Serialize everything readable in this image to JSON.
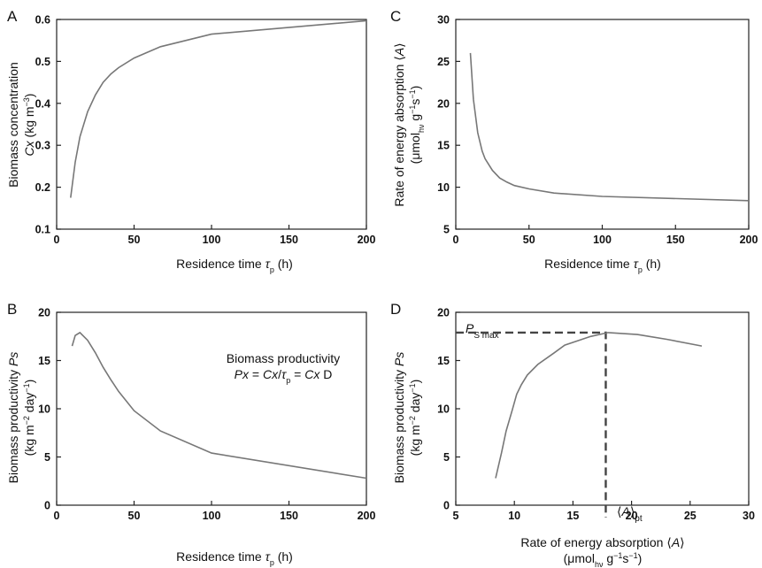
{
  "chart_data": [
    {
      "panel": "A",
      "type": "line",
      "xlim": [
        0,
        200
      ],
      "ylim": [
        0.1,
        0.6
      ],
      "xticks": [
        0,
        50,
        100,
        150,
        200
      ],
      "yticks": [
        0.1,
        0.2,
        0.3,
        0.4,
        0.5,
        0.6
      ],
      "ytick_labels": [
        "0.1",
        "0.2",
        "0.3",
        "0.4",
        "0.5",
        "0.6"
      ],
      "xlabel": "Residence time τp (h)",
      "ylabel": [
        "Biomass concentration",
        "Cx (kg m−3)"
      ],
      "series": [
        {
          "x": [
            9,
            12,
            15,
            20,
            25,
            30,
            35,
            40,
            50,
            67,
            100,
            200
          ],
          "y": [
            0.175,
            0.26,
            0.32,
            0.38,
            0.42,
            0.45,
            0.47,
            0.485,
            0.508,
            0.535,
            0.565,
            0.597
          ]
        }
      ]
    },
    {
      "panel": "C",
      "type": "line",
      "xlim": [
        0,
        200
      ],
      "ylim": [
        5,
        30
      ],
      "xticks": [
        0,
        50,
        100,
        150,
        200
      ],
      "yticks": [
        5,
        10,
        15,
        20,
        25,
        30
      ],
      "ytick_labels": [
        "5",
        "10",
        "15",
        "20",
        "25",
        "30"
      ],
      "xlabel": "Residence time τp (h)",
      "ylabel": [
        "Rate of energy absorption ⟨A⟩",
        "(μmolhν g−1 s−1)"
      ],
      "series": [
        {
          "x": [
            10,
            12,
            15,
            18,
            20,
            25,
            30,
            35,
            40,
            50,
            67,
            100,
            200
          ],
          "y": [
            26,
            20.5,
            16.5,
            14.3,
            13.4,
            12,
            11.1,
            10.6,
            10.2,
            9.8,
            9.3,
            8.9,
            8.4
          ]
        }
      ]
    },
    {
      "panel": "B",
      "type": "line",
      "xlim": [
        0,
        200
      ],
      "ylim": [
        0,
        20
      ],
      "xticks": [
        0,
        50,
        100,
        150,
        200
      ],
      "yticks": [
        0,
        5,
        10,
        15,
        20
      ],
      "ytick_labels": [
        "0",
        "5",
        "10",
        "15",
        "20"
      ],
      "xlabel": "Residence time τp (h)",
      "ylabel": [
        "Biomass productivity Ps",
        "(kg m−2 day−1)"
      ],
      "annotations": [
        "Biomass productivity",
        "Px = Cx/τp = Cx D"
      ],
      "series": [
        {
          "x": [
            10,
            12,
            15,
            20,
            25,
            30,
            35,
            40,
            50,
            67,
            100,
            200
          ],
          "y": [
            16.5,
            17.6,
            17.9,
            17.1,
            15.8,
            14.3,
            13.0,
            11.8,
            9.8,
            7.7,
            5.4,
            2.8
          ]
        }
      ]
    },
    {
      "panel": "D",
      "type": "line",
      "xlim": [
        5,
        30
      ],
      "ylim": [
        0,
        20
      ],
      "xticks": [
        5,
        10,
        15,
        20,
        25,
        30
      ],
      "yticks": [
        0,
        5,
        10,
        15,
        20
      ],
      "ytick_labels": [
        "0",
        "5",
        "10",
        "15",
        "20"
      ],
      "xlabel": [
        "Rate of energy absorption ⟨A⟩",
        "(μmolhν g−1 s−1)"
      ],
      "ylabel": [
        "Biomass productivity Ps",
        "(kg m−2 day−1)"
      ],
      "annotations": [
        "PS max",
        "⟨A⟩pt"
      ],
      "reference": {
        "x": 17.8,
        "y": 17.9
      },
      "series": [
        {
          "x": [
            8.4,
            8.9,
            9.3,
            9.8,
            10.2,
            10.6,
            11.1,
            12,
            13.4,
            14.3,
            16.5,
            18,
            20.5,
            23,
            26
          ],
          "y": [
            2.8,
            5.4,
            7.7,
            9.8,
            11.5,
            12.5,
            13.5,
            14.6,
            15.8,
            16.6,
            17.5,
            17.9,
            17.7,
            17.2,
            16.5
          ]
        }
      ]
    }
  ]
}
